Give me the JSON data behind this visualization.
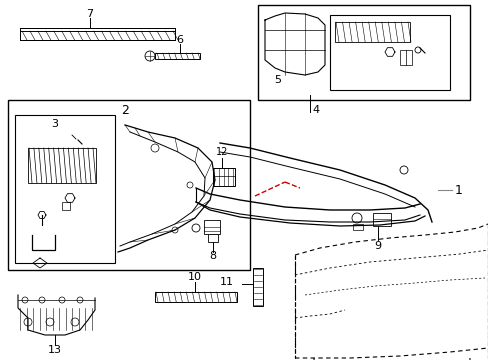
{
  "background_color": "#ffffff",
  "line_color": "#000000",
  "red_color": "#cc0000",
  "gray_color": "#888888",
  "fig_width": 4.89,
  "fig_height": 3.6,
  "dpi": 100
}
